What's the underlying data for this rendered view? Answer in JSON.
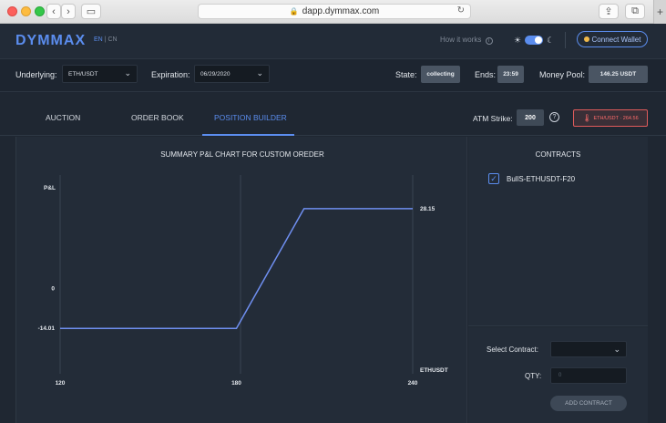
{
  "browser": {
    "url": "dapp.dymmax.com"
  },
  "header": {
    "logo": "DYMMAX",
    "lang_en": "EN",
    "lang_sep": "|",
    "lang_cn": "CN",
    "how_it_works": "How it works",
    "connect_wallet": "Connect Wallet"
  },
  "controls": {
    "underlying_label": "Underlying:",
    "underlying_value": "ETH/USDT",
    "expiration_label": "Expiration:",
    "expiration_value": "06/29/2020",
    "state_label": "State:",
    "state_value": "collecting",
    "ends_label": "Ends:",
    "ends_value": "23:59",
    "pool_label": "Money Pool:",
    "pool_value": "146.25 USDT"
  },
  "tabs": [
    {
      "label": "AUCTION",
      "active": false
    },
    {
      "label": "ORDER BOOK",
      "active": false
    },
    {
      "label": "POSITION BUILDER",
      "active": true
    }
  ],
  "atm": {
    "label": "ATM Strike:",
    "value": "200",
    "price": "ETH/USDT · 264.56",
    "price_color": "#ff6b6b"
  },
  "chart_title": "SUMMARY P&L CHART FOR CUSTOM OREDER",
  "chart_data": {
    "type": "line",
    "title": "SUMMARY P&L CHART FOR CUSTOM OREDER",
    "ylabel": "P&L",
    "xlabel": "ETHUSDT",
    "x_ticks": [
      "120",
      "180",
      "240"
    ],
    "y_ticks": [
      "0",
      "-14.01"
    ],
    "end_label": "28.15",
    "xlim": [
      120,
      240
    ],
    "ylim": [
      -30,
      40
    ],
    "series": [
      {
        "x": [
          120,
          180,
          203,
          240
        ],
        "y": [
          -14.01,
          -14.01,
          28.15,
          28.15
        ]
      }
    ],
    "grid": false,
    "line_color": "#6f8ff0"
  },
  "contracts": {
    "title": "CONTRACTS",
    "items": [
      {
        "name": "BullS-ETHUSDT-F20",
        "checked": true
      }
    ]
  },
  "add_form": {
    "select_label": "Select Contract:",
    "qty_label": "QTY:",
    "qty_placeholder": "0",
    "add_button": "ADD CONTRACT"
  },
  "colors": {
    "accent": "#5b8dee",
    "background": "#1f2732",
    "panel": "#232c38"
  }
}
